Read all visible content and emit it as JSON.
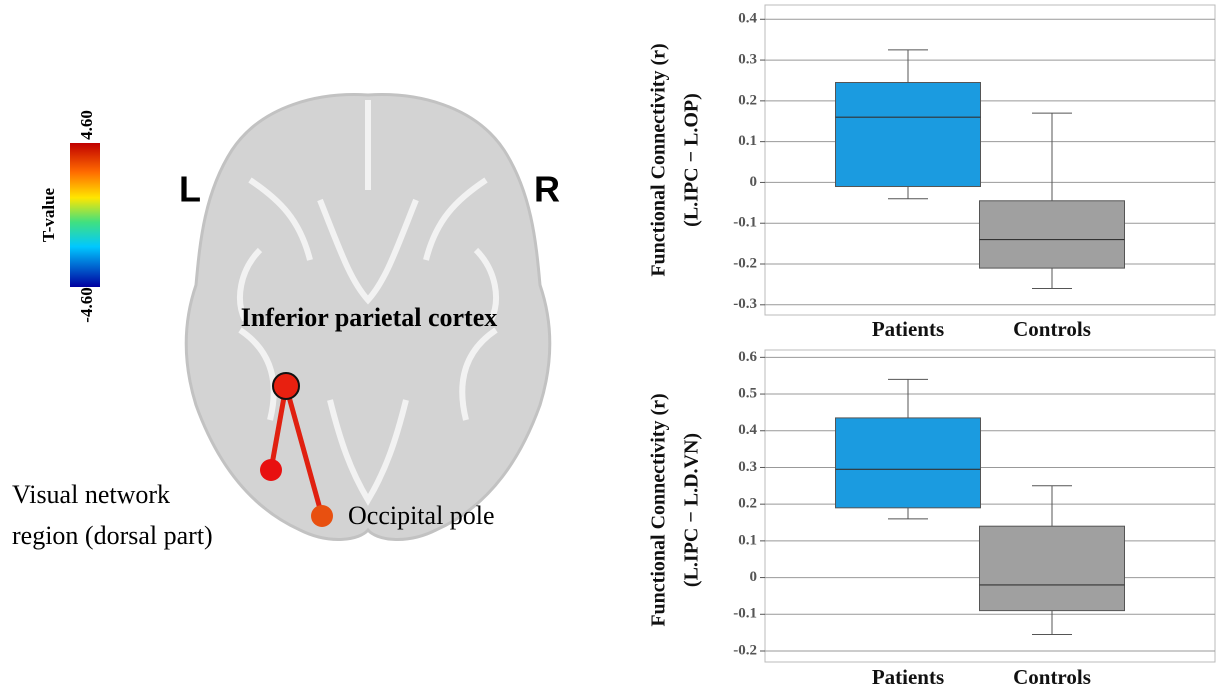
{
  "brain_panel": {
    "colorbar": {
      "title": "T-value",
      "max_label": "4.60",
      "min_label": "-4.60"
    },
    "left_label": "L",
    "right_label": "R",
    "seed_label": "Inferior parietal cortex",
    "target_labels": [
      [
        "Visual network",
        "region (dorsal part)"
      ],
      [
        "Occipital pole"
      ]
    ]
  },
  "chart_data": [
    {
      "type": "box",
      "ylabel": [
        "Functional Connectivity (r)",
        "(L.IPC − L.OP)"
      ],
      "categories": [
        "Patients",
        "Controls"
      ],
      "colors": [
        "#1b9be0",
        "#a0a0a0"
      ],
      "boxes": [
        {
          "whislo": -0.04,
          "q1": -0.01,
          "med": 0.16,
          "q3": 0.245,
          "whishi": 0.325
        },
        {
          "whislo": -0.26,
          "q1": -0.21,
          "med": -0.14,
          "q3": -0.045,
          "whishi": 0.17
        }
      ],
      "ylim": [
        -0.325,
        0.435
      ],
      "yticks": [
        -0.3,
        -0.2,
        -0.1,
        0,
        0.1,
        0.2,
        0.3,
        0.4
      ],
      "grid": true
    },
    {
      "type": "box",
      "ylabel": [
        "Functional Connectivity (r)",
        "(L.IPC − L.D.VN)"
      ],
      "categories": [
        "Patients",
        "Controls"
      ],
      "colors": [
        "#1b9be0",
        "#a0a0a0"
      ],
      "boxes": [
        {
          "whislo": 0.16,
          "q1": 0.19,
          "med": 0.295,
          "q3": 0.435,
          "whishi": 0.54
        },
        {
          "whislo": -0.155,
          "q1": -0.09,
          "med": -0.02,
          "q3": 0.14,
          "whishi": 0.25
        }
      ],
      "ylim": [
        -0.23,
        0.62
      ],
      "yticks": [
        -0.2,
        -0.1,
        0,
        0.1,
        0.2,
        0.3,
        0.4,
        0.5,
        0.6
      ],
      "grid": true
    }
  ]
}
